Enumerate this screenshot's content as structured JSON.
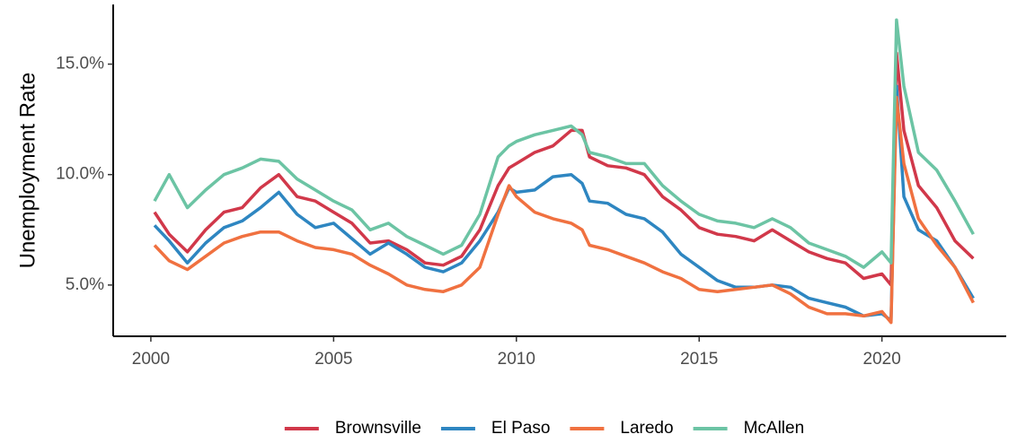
{
  "chart_data": {
    "type": "line",
    "y_label": "Unemployment Rate",
    "x": [
      2000.1,
      2000.5,
      2001.0,
      2001.5,
      2002.0,
      2002.5,
      2003.0,
      2003.5,
      2004.0,
      2004.5,
      2005.0,
      2005.5,
      2006.0,
      2006.5,
      2007.0,
      2007.5,
      2008.0,
      2008.5,
      2009.0,
      2009.5,
      2009.8,
      2010.0,
      2010.5,
      2011.0,
      2011.5,
      2011.8,
      2012.0,
      2012.5,
      2013.0,
      2013.5,
      2014.0,
      2014.5,
      2015.0,
      2015.5,
      2016.0,
      2016.5,
      2017.0,
      2017.5,
      2018.0,
      2018.5,
      2019.0,
      2019.5,
      2020.0,
      2020.25,
      2020.4,
      2020.6,
      2021.0,
      2021.5,
      2022.0,
      2022.5
    ],
    "series": [
      {
        "name": "Brownsville",
        "color": "#d1384a",
        "values": [
          8.3,
          7.3,
          6.5,
          7.5,
          8.3,
          8.5,
          9.4,
          10.0,
          9.0,
          8.8,
          8.3,
          7.8,
          6.9,
          7.0,
          6.6,
          6.0,
          5.9,
          6.3,
          7.5,
          9.5,
          10.3,
          10.5,
          11.0,
          11.3,
          12.0,
          12.0,
          10.8,
          10.4,
          10.3,
          10.0,
          9.0,
          8.4,
          7.6,
          7.3,
          7.2,
          7.0,
          7.5,
          7.0,
          6.5,
          6.2,
          6.0,
          5.3,
          5.5,
          5.0,
          15.5,
          12.0,
          9.5,
          8.5,
          7.0,
          6.2
        ]
      },
      {
        "name": "El Paso",
        "color": "#2e86c1",
        "values": [
          7.7,
          7.0,
          6.0,
          6.9,
          7.6,
          7.9,
          8.5,
          9.2,
          8.2,
          7.6,
          7.8,
          7.1,
          6.4,
          6.9,
          6.4,
          5.8,
          5.6,
          6.0,
          7.0,
          8.3,
          9.4,
          9.2,
          9.3,
          9.9,
          10.0,
          9.6,
          8.8,
          8.7,
          8.2,
          8.0,
          7.4,
          6.4,
          5.8,
          5.2,
          4.9,
          4.9,
          5.0,
          4.9,
          4.4,
          4.2,
          4.0,
          3.6,
          3.7,
          3.4,
          14.0,
          9.0,
          7.5,
          7.0,
          5.8,
          4.4
        ]
      },
      {
        "name": "Laredo",
        "color": "#f07140",
        "values": [
          6.8,
          6.1,
          5.7,
          6.3,
          6.9,
          7.2,
          7.4,
          7.4,
          7.0,
          6.7,
          6.6,
          6.4,
          5.9,
          5.5,
          5.0,
          4.8,
          4.7,
          5.0,
          5.8,
          8.2,
          9.5,
          9.0,
          8.3,
          8.0,
          7.8,
          7.5,
          6.8,
          6.6,
          6.3,
          6.0,
          5.6,
          5.3,
          4.8,
          4.7,
          4.8,
          4.9,
          5.0,
          4.6,
          4.0,
          3.7,
          3.7,
          3.6,
          3.8,
          3.3,
          13.5,
          10.5,
          8.0,
          6.8,
          5.8,
          4.2
        ]
      },
      {
        "name": "McAllen",
        "color": "#6cc4a4",
        "values": [
          8.8,
          10.0,
          8.5,
          9.3,
          10.0,
          10.3,
          10.7,
          10.6,
          9.8,
          9.3,
          8.8,
          8.4,
          7.5,
          7.8,
          7.2,
          6.8,
          6.4,
          6.8,
          8.2,
          10.8,
          11.3,
          11.5,
          11.8,
          12.0,
          12.2,
          11.8,
          11.0,
          10.8,
          10.5,
          10.5,
          9.5,
          8.8,
          8.2,
          7.9,
          7.8,
          7.6,
          8.0,
          7.6,
          6.9,
          6.6,
          6.3,
          5.8,
          6.5,
          6.0,
          17.0,
          14.0,
          11.0,
          10.2,
          8.8,
          7.3
        ]
      }
    ],
    "xlim": [
      1998.97,
      2023.4
    ],
    "xticks": [
      2000,
      2005,
      2010,
      2015,
      2020
    ],
    "ylim": [
      2.68,
      17.7
    ],
    "yticks": [
      {
        "value": 5,
        "label": "5.0%"
      },
      {
        "value": 10,
        "label": "10.0%"
      },
      {
        "value": 15,
        "label": "15.0%"
      }
    ],
    "legend": "bottom"
  }
}
